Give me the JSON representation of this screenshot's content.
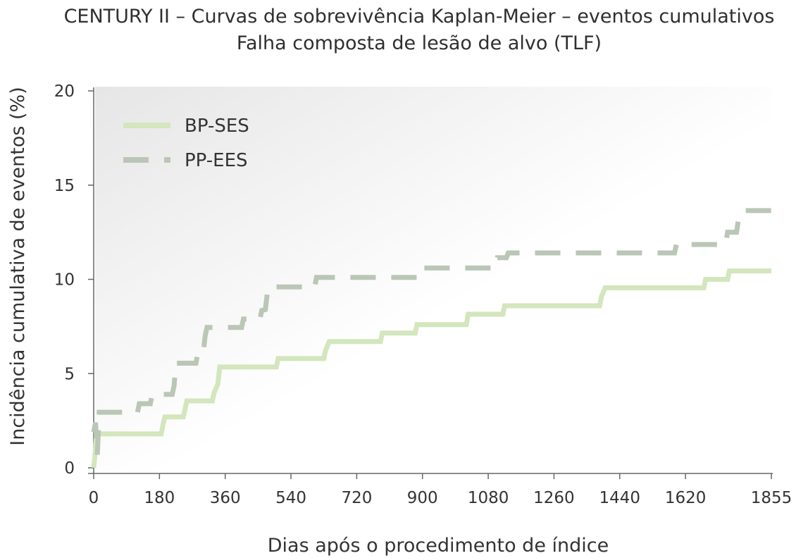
{
  "chart_data": {
    "type": "line",
    "title": "CENTURY II – Curvas de sobrevivência Kaplan-Meier – eventos cumulativos",
    "subtitle": "Falha composta de lesão de alvo (TLF)",
    "xlabel": "Dias após o procedimento de índice",
    "ylabel": "Incidência cumulativa de eventos (%)",
    "xlim": [
      0,
      1855
    ],
    "ylim": [
      0,
      20
    ],
    "x_ticks": [
      0,
      180,
      360,
      540,
      720,
      900,
      1080,
      1260,
      1440,
      1620,
      1855
    ],
    "y_ticks": [
      0,
      5,
      10,
      15,
      20
    ],
    "grid": false,
    "legend_position": "top-left",
    "series": [
      {
        "name": "BP-SES",
        "color": "#d3e6bd",
        "style": "solid",
        "step_points": [
          [
            0,
            0
          ],
          [
            3,
            0.6
          ],
          [
            8,
            1.8
          ],
          [
            185,
            1.8
          ],
          [
            190,
            2.3
          ],
          [
            195,
            2.7
          ],
          [
            245,
            2.7
          ],
          [
            250,
            3.1
          ],
          [
            255,
            3.55
          ],
          [
            325,
            3.55
          ],
          [
            330,
            4.0
          ],
          [
            340,
            4.45
          ],
          [
            345,
            5.35
          ],
          [
            500,
            5.35
          ],
          [
            505,
            5.8
          ],
          [
            630,
            5.8
          ],
          [
            635,
            6.25
          ],
          [
            645,
            6.7
          ],
          [
            785,
            6.7
          ],
          [
            790,
            7.15
          ],
          [
            880,
            7.15
          ],
          [
            885,
            7.6
          ],
          [
            1020,
            7.6
          ],
          [
            1025,
            8.15
          ],
          [
            1120,
            8.15
          ],
          [
            1125,
            8.6
          ],
          [
            1385,
            8.6
          ],
          [
            1390,
            9.1
          ],
          [
            1400,
            9.55
          ],
          [
            1670,
            9.55
          ],
          [
            1675,
            10.0
          ],
          [
            1735,
            10.0
          ],
          [
            1740,
            10.45
          ],
          [
            1855,
            10.45
          ]
        ]
      },
      {
        "name": "PP-EES",
        "color": "#bac6b6",
        "style": "dashed",
        "step_points": [
          [
            0,
            1.9
          ],
          [
            5,
            2.4
          ],
          [
            10,
            0.7
          ],
          [
            15,
            2.95
          ],
          [
            120,
            2.95
          ],
          [
            125,
            3.4
          ],
          [
            155,
            3.4
          ],
          [
            160,
            3.9
          ],
          [
            215,
            3.9
          ],
          [
            220,
            4.35
          ],
          [
            225,
            5.55
          ],
          [
            280,
            5.55
          ],
          [
            285,
            6.1
          ],
          [
            300,
            6.1
          ],
          [
            305,
            7.0
          ],
          [
            310,
            7.45
          ],
          [
            405,
            7.45
          ],
          [
            410,
            7.9
          ],
          [
            455,
            7.9
          ],
          [
            460,
            8.35
          ],
          [
            470,
            8.4
          ],
          [
            475,
            9.2
          ],
          [
            480,
            9.6
          ],
          [
            605,
            9.6
          ],
          [
            610,
            10.1
          ],
          [
            900,
            10.1
          ],
          [
            905,
            10.6
          ],
          [
            1100,
            10.6
          ],
          [
            1105,
            11.15
          ],
          [
            1130,
            11.15
          ],
          [
            1135,
            11.4
          ],
          [
            1590,
            11.4
          ],
          [
            1595,
            11.85
          ],
          [
            1730,
            11.85
          ],
          [
            1735,
            12.5
          ],
          [
            1760,
            12.5
          ],
          [
            1765,
            13.2
          ],
          [
            1775,
            13.65
          ],
          [
            1855,
            13.65
          ]
        ]
      }
    ]
  }
}
